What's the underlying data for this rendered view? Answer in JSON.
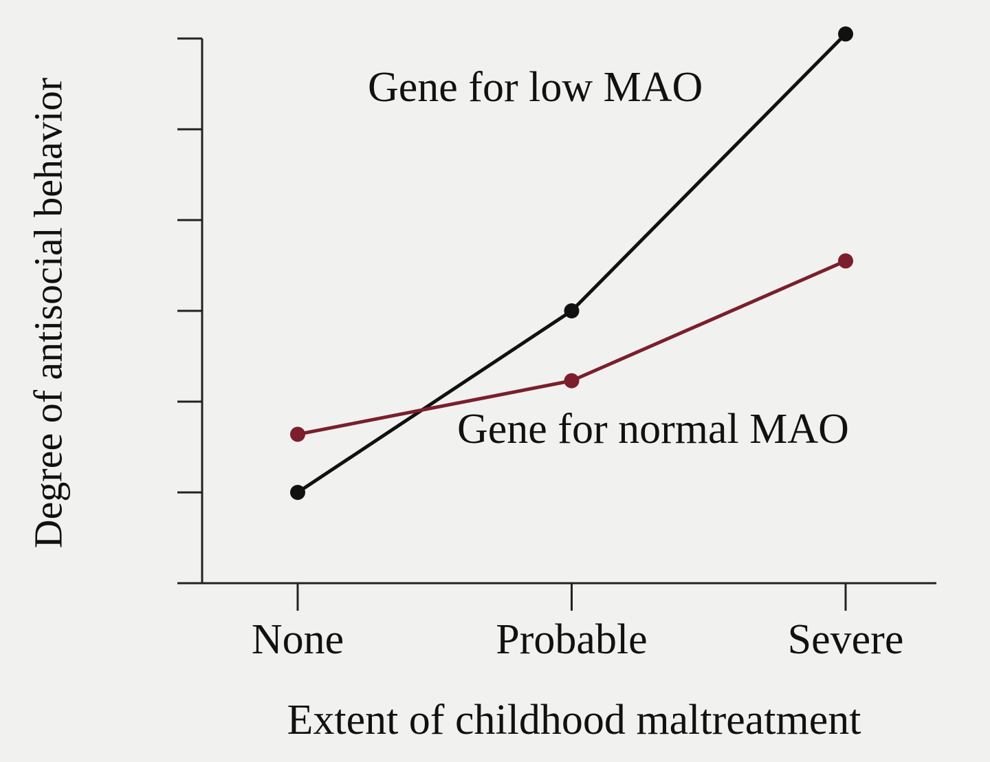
{
  "chart_data": {
    "type": "line",
    "x_label": "Extent of childhood maltreatment",
    "y_label": "Degree of antisocial behavior",
    "categories": [
      "None",
      "Probable",
      "Severe"
    ],
    "series": [
      {
        "name": "Gene for low MAO",
        "color": "#111111",
        "values": [
          1.0,
          3.0,
          6.05
        ]
      },
      {
        "name": "Gene for normal MAO",
        "color": "#7a1f2b",
        "values": [
          1.64,
          2.23,
          3.55
        ]
      }
    ],
    "ylim": [
      0,
      6
    ],
    "yticks": [
      1,
      2,
      3,
      4,
      5,
      6
    ],
    "grid": false
  }
}
